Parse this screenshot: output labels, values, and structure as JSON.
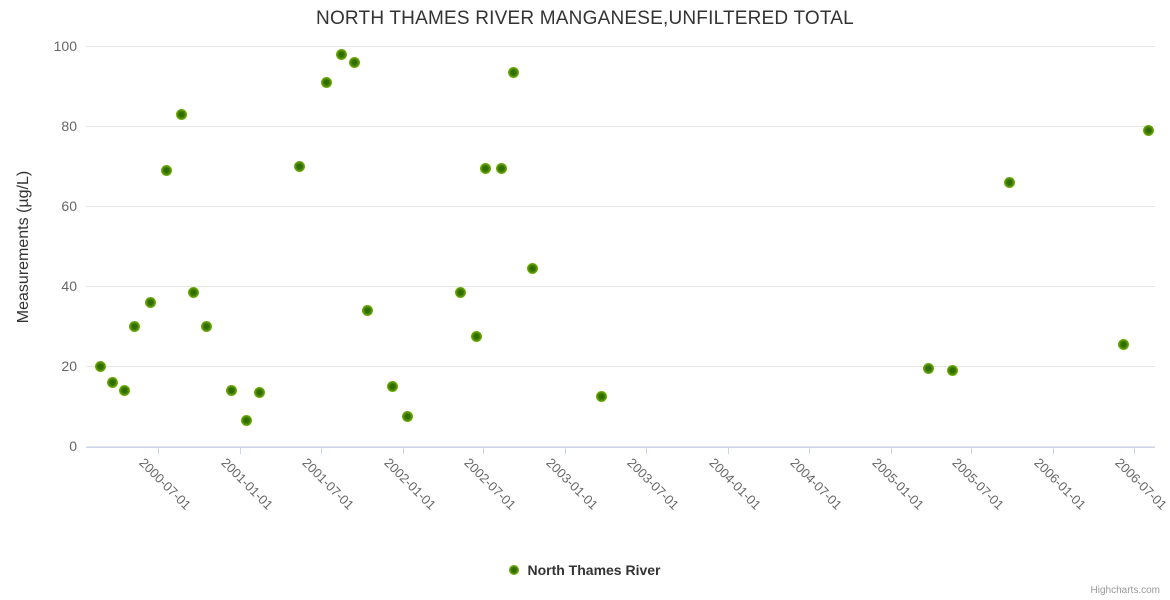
{
  "title": "NORTH THAMES RIVER MANGANESE,UNFILTERED TOTAL",
  "credit": "Highcharts.com",
  "legend": {
    "series_label": "North Thames River"
  },
  "colors": {
    "marker_green": "#7cb810",
    "marker_center_green": "#2e6b00",
    "grid": "#e6e6e6",
    "axis_line": "#ccd6eb",
    "title_text": "#333333",
    "tick_text": "#666666",
    "credit_text": "#999999"
  },
  "chart_data": {
    "type": "scatter",
    "title": "NORTH THAMES RIVER MANGANESE,UNFILTERED TOTAL",
    "xlabel": "",
    "ylabel": "Measurements (µg/L)",
    "grid": true,
    "legend_position": "bottom-center",
    "ylim": [
      0,
      100
    ],
    "y_ticks": [
      0,
      20,
      40,
      60,
      80,
      100
    ],
    "x_range": [
      "2000-01-20",
      "2006-08-18"
    ],
    "x_ticks": [
      "2000-07-01",
      "2001-01-01",
      "2001-07-01",
      "2002-01-01",
      "2002-07-01",
      "2003-01-01",
      "2003-07-01",
      "2004-01-01",
      "2004-07-01",
      "2005-01-01",
      "2005-07-01",
      "2006-01-01",
      "2006-07-01"
    ],
    "series": [
      {
        "name": "North Thames River",
        "points": [
          {
            "x": "2000-02-22",
            "y": 20
          },
          {
            "x": "2000-03-20",
            "y": 16
          },
          {
            "x": "2000-04-17",
            "y": 14
          },
          {
            "x": "2000-05-09",
            "y": 30
          },
          {
            "x": "2000-06-14",
            "y": 36
          },
          {
            "x": "2000-07-19",
            "y": 69
          },
          {
            "x": "2000-08-22",
            "y": 83
          },
          {
            "x": "2000-09-18",
            "y": 38.5
          },
          {
            "x": "2000-10-17",
            "y": 30
          },
          {
            "x": "2000-12-12",
            "y": 14
          },
          {
            "x": "2001-01-15",
            "y": 6.5
          },
          {
            "x": "2001-02-13",
            "y": 13.5
          },
          {
            "x": "2001-05-15",
            "y": 70
          },
          {
            "x": "2001-07-14",
            "y": 91
          },
          {
            "x": "2001-08-17",
            "y": 98
          },
          {
            "x": "2001-09-15",
            "y": 96
          },
          {
            "x": "2001-10-15",
            "y": 34
          },
          {
            "x": "2001-12-10",
            "y": 15
          },
          {
            "x": "2002-01-12",
            "y": 7.5
          },
          {
            "x": "2002-05-11",
            "y": 38.5
          },
          {
            "x": "2002-06-16",
            "y": 27.5
          },
          {
            "x": "2002-07-06",
            "y": 69.5
          },
          {
            "x": "2002-08-12",
            "y": 69.5
          },
          {
            "x": "2002-09-07",
            "y": 93.5
          },
          {
            "x": "2002-10-20",
            "y": 44.5
          },
          {
            "x": "2003-03-25",
            "y": 12.5
          },
          {
            "x": "2005-03-27",
            "y": 19.5
          },
          {
            "x": "2005-05-21",
            "y": 19
          },
          {
            "x": "2005-09-25",
            "y": 66
          },
          {
            "x": "2006-06-09",
            "y": 25.5
          },
          {
            "x": "2006-08-04",
            "y": 79
          }
        ]
      }
    ]
  }
}
